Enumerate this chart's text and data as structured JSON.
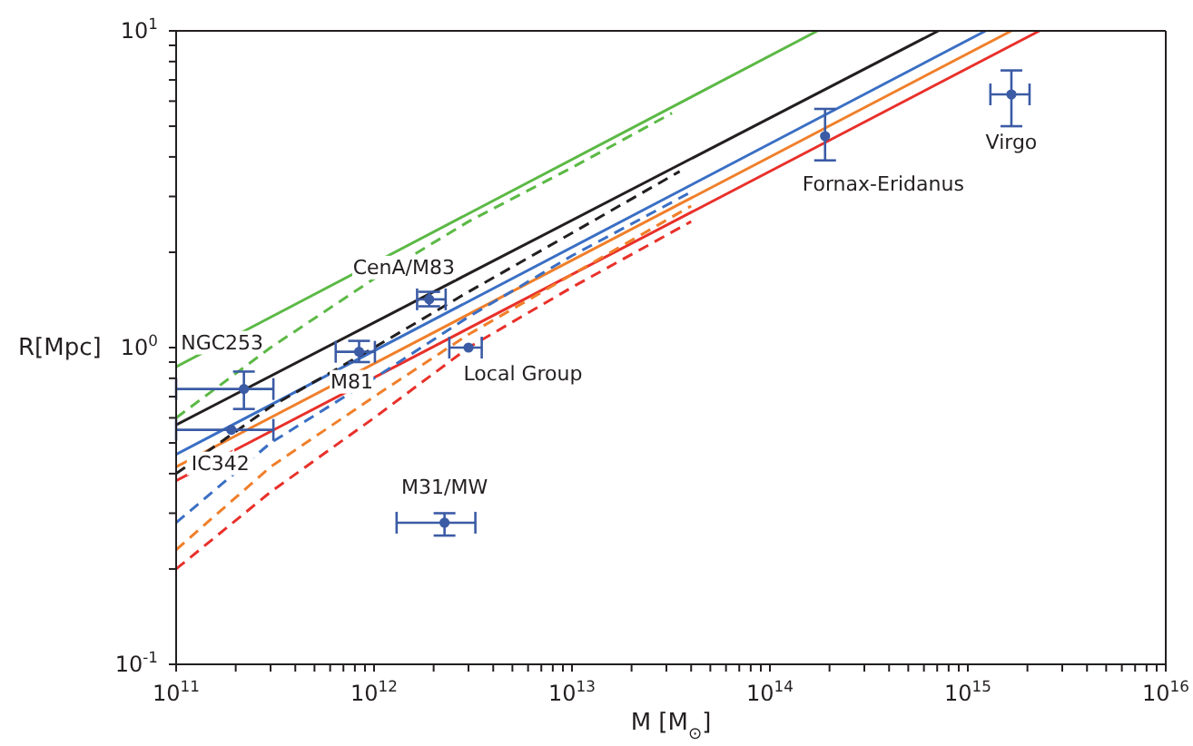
{
  "chart_data": {
    "type": "line",
    "xlabel": "M [M$_{⊙}$]",
    "ylabel": "R[Mpc]",
    "log": "xy",
    "xlim": [
      100000000000.0,
      1e+16
    ],
    "ylim": [
      0.1,
      10
    ],
    "xticks": [
      {
        "value": 100000000000.0,
        "label": "10$^{11}$"
      },
      {
        "value": 200000000000.0,
        "label": null
      },
      {
        "value": 300000000000.0,
        "label": null
      },
      {
        "value": 400000000000.0,
        "label": null
      },
      {
        "value": 500000000000.0,
        "label": null
      },
      {
        "value": 600000000000.0,
        "label": null
      },
      {
        "value": 700000000000.0,
        "label": null
      },
      {
        "value": 800000000000.0,
        "label": null
      },
      {
        "value": 900000000000.0,
        "label": null
      },
      {
        "value": 1000000000000.0,
        "label": "10$^{12}$"
      },
      {
        "value": 2000000000000.0,
        "label": null
      },
      {
        "value": 3000000000000.0,
        "label": null
      },
      {
        "value": 4000000000000.0,
        "label": null
      },
      {
        "value": 5000000000000.0,
        "label": null
      },
      {
        "value": 6000000000000.0,
        "label": null
      },
      {
        "value": 7000000000000.0,
        "label": null
      },
      {
        "value": 8000000000000.0,
        "label": null
      },
      {
        "value": 9000000000000.0,
        "label": null
      },
      {
        "value": 10000000000000.0,
        "label": "10$^{13}$"
      },
      {
        "value": 20000000000000.0,
        "label": null
      },
      {
        "value": 30000000000000.0,
        "label": null
      },
      {
        "value": 40000000000000.0,
        "label": null
      },
      {
        "value": 50000000000000.0,
        "label": null
      },
      {
        "value": 60000000000000.0,
        "label": null
      },
      {
        "value": 70000000000000.0,
        "label": null
      },
      {
        "value": 80000000000000.0,
        "label": null
      },
      {
        "value": 90000000000000.0,
        "label": null
      },
      {
        "value": 100000000000000.0,
        "label": "10$^{14}$"
      },
      {
        "value": 200000000000000.0,
        "label": null
      },
      {
        "value": 300000000000000.0,
        "label": null
      },
      {
        "value": 400000000000000.0,
        "label": null
      },
      {
        "value": 500000000000000.0,
        "label": null
      },
      {
        "value": 600000000000000.0,
        "label": null
      },
      {
        "value": 700000000000000.0,
        "label": null
      },
      {
        "value": 800000000000000.0,
        "label": null
      },
      {
        "value": 900000000000000.0,
        "label": null
      },
      {
        "value": 1000000000000000.0,
        "label": "10$^{15}$"
      },
      {
        "value": 2000000000000000.0,
        "label": null
      },
      {
        "value": 3000000000000000.0,
        "label": null
      },
      {
        "value": 4000000000000000.0,
        "label": null
      },
      {
        "value": 5000000000000000.0,
        "label": null
      },
      {
        "value": 6000000000000000.0,
        "label": null
      },
      {
        "value": 7000000000000000.0,
        "label": null
      },
      {
        "value": 8000000000000000.0,
        "label": null
      },
      {
        "value": 9000000000000000.0,
        "label": null
      },
      {
        "value": 1e+16,
        "label": "10$^{16}$"
      }
    ],
    "yticks": [
      {
        "value": 0.1,
        "label": "10$^{-1}$"
      },
      {
        "value": 0.2,
        "label": null
      },
      {
        "value": 0.3,
        "label": null
      },
      {
        "value": 0.4,
        "label": null
      },
      {
        "value": 0.5,
        "label": null
      },
      {
        "value": 0.6,
        "label": null
      },
      {
        "value": 0.7,
        "label": null
      },
      {
        "value": 0.8,
        "label": null
      },
      {
        "value": 0.9,
        "label": null
      },
      {
        "value": 1,
        "label": "10$^{0}$"
      },
      {
        "value": 2,
        "label": null
      },
      {
        "value": 3,
        "label": null
      },
      {
        "value": 4,
        "label": null
      },
      {
        "value": 5,
        "label": null
      },
      {
        "value": 6,
        "label": null
      },
      {
        "value": 7,
        "label": null
      },
      {
        "value": 8,
        "label": null
      },
      {
        "value": 9,
        "label": null
      },
      {
        "value": 10,
        "label": "10$^{1}$"
      }
    ],
    "series": [
      {
        "color": "#5cb946",
        "line_style": "solid",
        "x": [
          100000000000.0,
          174000000000000.0
        ],
        "values": [
          0.87,
          10
        ]
      },
      {
        "color": "#231f20",
        "line_style": "solid",
        "x": [
          100000000000.0,
          710000000000000.0
        ],
        "values": [
          0.57,
          10
        ]
      },
      {
        "color": "#3a6fc4",
        "line_style": "solid",
        "x": [
          100000000000.0,
          1230000000000000.0
        ],
        "values": [
          0.46,
          10
        ]
      },
      {
        "color": "#f07f2a",
        "line_style": "solid",
        "x": [
          100000000000.0,
          1660000000000000.0
        ],
        "values": [
          0.42,
          10
        ]
      },
      {
        "color": "#e8302a",
        "line_style": "solid",
        "x": [
          100000000000.0,
          2300000000000000.0
        ],
        "values": [
          0.38,
          10
        ]
      },
      {
        "color": "#5cb946",
        "line_style": "dashed",
        "x": [
          100000000000.0,
          300000000000.0,
          1000000000000.0,
          3000000000000.0,
          10000000000000.0,
          32000000000000.0
        ],
        "values": [
          0.6,
          1.0,
          1.65,
          2.5,
          3.7,
          5.5
        ]
      },
      {
        "color": "#231f20",
        "line_style": "dashed",
        "x": [
          100000000000.0,
          300000000000.0,
          1000000000000.0,
          3000000000000.0,
          10000000000000.0,
          35000000000000.0
        ],
        "values": [
          0.4,
          0.65,
          1.0,
          1.5,
          2.3,
          3.6
        ]
      },
      {
        "color": "#3a6fc4",
        "line_style": "dashed",
        "x": [
          100000000000.0,
          300000000000.0,
          1000000000000.0,
          3000000000000.0,
          10000000000000.0,
          40000000000000.0
        ],
        "values": [
          0.28,
          0.5,
          0.8,
          1.25,
          1.95,
          3.1
        ]
      },
      {
        "color": "#f07f2a",
        "line_style": "dashed",
        "x": [
          100000000000.0,
          300000000000.0,
          1000000000000.0,
          3000000000000.0,
          10000000000000.0,
          40000000000000.0
        ],
        "values": [
          0.23,
          0.42,
          0.7,
          1.1,
          1.7,
          2.8
        ]
      },
      {
        "color": "#e8302a",
        "line_style": "dashed",
        "x": [
          100000000000.0,
          300000000000.0,
          1000000000000.0,
          3000000000000.0,
          10000000000000.0,
          40000000000000.0
        ],
        "values": [
          0.2,
          0.35,
          0.6,
          1.0,
          1.55,
          2.5
        ]
      },
      {
        "type": "scatter",
        "color": "#3b5ba5",
        "marker": "circle",
        "x": [
          220000000000.0,
          190000000000.0,
          1900000000000.0,
          840000000000.0,
          3000000000000.0,
          2270000000000.0,
          190000000000000.0,
          1660000000000000.0
        ],
        "values": [
          0.74,
          0.55,
          1.42,
          0.97,
          1.0,
          0.28,
          4.65,
          6.3
        ],
        "errors": [
          [
            0.64,
            0.84
          ],
          null,
          [
            1.35,
            1.5
          ],
          [
            0.9,
            1.05
          ],
          null,
          [
            0.255,
            0.3
          ],
          [
            3.9,
            5.67
          ],
          [
            5.0,
            7.5
          ]
        ],
        "xerrors": [
          [
            100000000000.0,
            310000000000.0
          ],
          [
            100000000000.0,
            310000000000.0
          ],
          [
            1650000000000.0,
            2300000000000.0
          ],
          [
            640000000000.0,
            1010000000000.0
          ],
          [
            2400000000000.0,
            3500000000000.0
          ],
          [
            1300000000000.0,
            3250000000000.0
          ],
          null,
          [
            1300000000000000.0,
            2050000000000000.0
          ]
        ]
      }
    ],
    "annotations": [
      {
        "text": "NGC253",
        "x": 220000000000.0,
        "y": 0.74
      },
      {
        "text": "IC342",
        "x": 190000000000.0,
        "y": 0.55
      },
      {
        "text": "CenA/M83",
        "x": 1900000000000.0,
        "y": 1.42
      },
      {
        "text": "M81",
        "x": 840000000000.0,
        "y": 0.97
      },
      {
        "text": "Local Group",
        "x": 3000000000000.0,
        "y": 1.0
      },
      {
        "text": "M31/MW",
        "x": 2270000000000.0,
        "y": 0.28
      },
      {
        "text": "Fornax-Eridanus",
        "x": 190000000000000.0,
        "y": 4.65
      },
      {
        "text": "Virgo",
        "x": 1660000000000000.0,
        "y": 6.3
      }
    ]
  }
}
